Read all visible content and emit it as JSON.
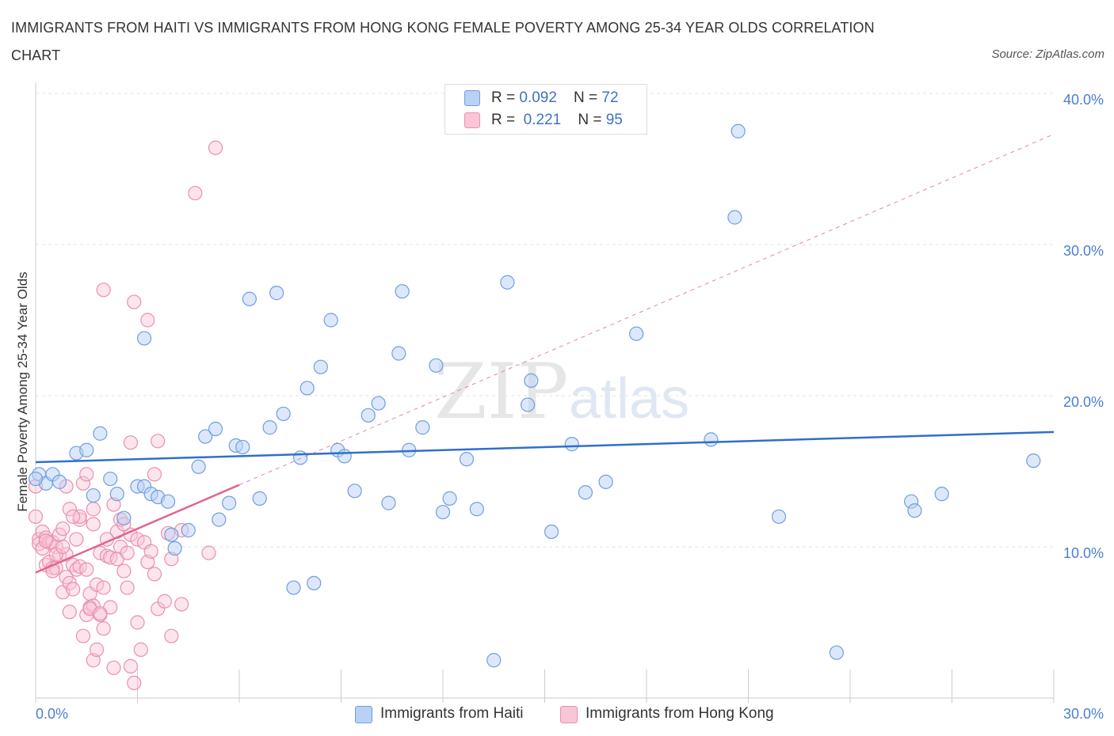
{
  "title": "IMMIGRANTS FROM HAITI VS IMMIGRANTS FROM HONG KONG FEMALE POVERTY AMONG 25-34 YEAR OLDS CORRELATION CHART",
  "source": "Source: ZipAtlas.com",
  "watermark": {
    "zip": "ZIP",
    "atlas": "atlas"
  },
  "legend": {
    "haiti": {
      "r_label": "R = ",
      "r_value": "0.092",
      "n_label": "N = ",
      "n_value": "72"
    },
    "hongkong": {
      "r_label": "R = ",
      "r_value": "0.221",
      "n_label": "N = ",
      "n_value": "95"
    }
  },
  "colors": {
    "haiti": "#6f9ee0",
    "haiti_fill": "#b9d1f3",
    "hongkong": "#ea8fae",
    "hongkong_fill": "#f8c6d7",
    "haiti_line": "#2f6fcb",
    "hongkong_line": "#e06690"
  },
  "chart_data": {
    "type": "scatter",
    "title": "IMMIGRANTS FROM HAITI VS IMMIGRANTS FROM HONG KONG FEMALE POVERTY AMONG 25-34 YEAR OLDS CORRELATION CHART",
    "xlabel": "",
    "ylabel": "Female Poverty Among 25-34 Year Olds",
    "xlim": [
      0,
      30
    ],
    "ylim": [
      0,
      40
    ],
    "x_tick_labels": [
      "0.0%",
      "30.0%"
    ],
    "y_ticks": [
      10,
      20,
      30,
      40
    ],
    "y_tick_labels": [
      "10.0%",
      "20.0%",
      "30.0%",
      "40.0%"
    ],
    "grid": true,
    "legend_position": "top-center",
    "series": [
      {
        "name": "Immigrants from Haiti",
        "r": 0.092,
        "n": 72,
        "trend": {
          "x": [
            0,
            30
          ],
          "y": [
            15.6,
            17.6
          ]
        },
        "points": [
          [
            0.1,
            14.8
          ],
          [
            0.3,
            14.2
          ],
          [
            0.5,
            14.8
          ],
          [
            0.7,
            14.3
          ],
          [
            1.2,
            16.2
          ],
          [
            1.5,
            16.4
          ],
          [
            1.7,
            13.4
          ],
          [
            1.9,
            17.5
          ],
          [
            2.2,
            14.5
          ],
          [
            2.4,
            13.5
          ],
          [
            2.6,
            11.9
          ],
          [
            3.0,
            14.0
          ],
          [
            3.2,
            14.0
          ],
          [
            3.2,
            23.8
          ],
          [
            3.4,
            13.5
          ],
          [
            3.6,
            13.3
          ],
          [
            3.9,
            13.0
          ],
          [
            4.0,
            10.8
          ],
          [
            4.1,
            9.9
          ],
          [
            4.5,
            11.1
          ],
          [
            4.8,
            15.3
          ],
          [
            5.0,
            17.3
          ],
          [
            5.3,
            17.8
          ],
          [
            5.4,
            11.8
          ],
          [
            5.7,
            12.9
          ],
          [
            5.9,
            16.7
          ],
          [
            6.1,
            16.6
          ],
          [
            6.3,
            26.4
          ],
          [
            6.6,
            13.2
          ],
          [
            6.9,
            17.9
          ],
          [
            7.1,
            26.8
          ],
          [
            7.3,
            18.8
          ],
          [
            7.6,
            7.3
          ],
          [
            7.8,
            15.9
          ],
          [
            8.0,
            20.5
          ],
          [
            8.2,
            7.6
          ],
          [
            8.4,
            21.9
          ],
          [
            8.7,
            25.0
          ],
          [
            8.9,
            16.4
          ],
          [
            9.1,
            16.0
          ],
          [
            9.4,
            13.7
          ],
          [
            9.8,
            18.7
          ],
          [
            10.1,
            19.5
          ],
          [
            10.4,
            12.9
          ],
          [
            10.7,
            22.8
          ],
          [
            10.8,
            26.9
          ],
          [
            11.0,
            16.4
          ],
          [
            11.4,
            17.9
          ],
          [
            11.8,
            22.0
          ],
          [
            12.0,
            12.3
          ],
          [
            12.2,
            13.2
          ],
          [
            12.7,
            15.8
          ],
          [
            13.0,
            12.5
          ],
          [
            13.5,
            2.5
          ],
          [
            13.9,
            27.5
          ],
          [
            14.5,
            19.4
          ],
          [
            14.6,
            21.0
          ],
          [
            15.2,
            11.0
          ],
          [
            15.8,
            16.8
          ],
          [
            16.2,
            13.6
          ],
          [
            16.8,
            14.3
          ],
          [
            17.7,
            24.1
          ],
          [
            19.9,
            17.1
          ],
          [
            20.6,
            31.8
          ],
          [
            20.7,
            37.5
          ],
          [
            21.9,
            12.0
          ],
          [
            23.6,
            3.0
          ],
          [
            25.8,
            13.0
          ],
          [
            25.9,
            12.4
          ],
          [
            26.7,
            13.5
          ],
          [
            29.4,
            15.7
          ],
          [
            0.0,
            14.5
          ]
        ]
      },
      {
        "name": "Immigrants from Hong Kong",
        "r": 0.221,
        "n": 95,
        "trend": {
          "x": [
            0,
            6
          ],
          "y": [
            8.3,
            14.1
          ]
        },
        "points": [
          [
            0.0,
            12.0
          ],
          [
            0.0,
            14.0
          ],
          [
            0.1,
            10.5
          ],
          [
            0.1,
            10.2
          ],
          [
            0.2,
            11.0
          ],
          [
            0.2,
            9.9
          ],
          [
            0.3,
            8.8
          ],
          [
            0.3,
            10.6
          ],
          [
            0.4,
            10.3
          ],
          [
            0.4,
            9.0
          ],
          [
            0.5,
            10.3
          ],
          [
            0.5,
            8.6
          ],
          [
            0.6,
            10.0
          ],
          [
            0.6,
            8.6
          ],
          [
            0.7,
            10.8
          ],
          [
            0.7,
            9.4
          ],
          [
            0.8,
            11.2
          ],
          [
            0.8,
            7.0
          ],
          [
            0.9,
            8.0
          ],
          [
            0.9,
            9.5
          ],
          [
            0.9,
            14.0
          ],
          [
            1.0,
            12.5
          ],
          [
            1.0,
            7.6
          ],
          [
            1.0,
            5.7
          ],
          [
            1.1,
            8.8
          ],
          [
            1.1,
            7.2
          ],
          [
            1.2,
            10.5
          ],
          [
            1.2,
            8.5
          ],
          [
            1.3,
            11.8
          ],
          [
            1.3,
            12.0
          ],
          [
            1.3,
            8.7
          ],
          [
            1.4,
            14.2
          ],
          [
            1.4,
            4.1
          ],
          [
            1.5,
            14.8
          ],
          [
            1.5,
            8.5
          ],
          [
            1.5,
            5.5
          ],
          [
            1.6,
            6.9
          ],
          [
            1.6,
            6.0
          ],
          [
            1.7,
            12.5
          ],
          [
            1.7,
            11.5
          ],
          [
            1.7,
            6.1
          ],
          [
            1.7,
            2.5
          ],
          [
            1.8,
            7.5
          ],
          [
            1.8,
            3.2
          ],
          [
            1.9,
            5.5
          ],
          [
            1.9,
            9.6
          ],
          [
            2.0,
            7.3
          ],
          [
            2.0,
            4.6
          ],
          [
            2.0,
            27.0
          ],
          [
            2.1,
            9.4
          ],
          [
            2.2,
            9.3
          ],
          [
            2.2,
            6.0
          ],
          [
            2.3,
            12.8
          ],
          [
            2.3,
            2.0
          ],
          [
            2.4,
            11.0
          ],
          [
            2.4,
            9.2
          ],
          [
            2.5,
            10.0
          ],
          [
            2.5,
            11.8
          ],
          [
            2.6,
            8.4
          ],
          [
            2.7,
            9.6
          ],
          [
            2.7,
            7.3
          ],
          [
            2.8,
            10.8
          ],
          [
            2.8,
            2.1
          ],
          [
            2.8,
            16.9
          ],
          [
            2.9,
            1.0
          ],
          [
            2.9,
            26.2
          ],
          [
            3.0,
            10.5
          ],
          [
            3.0,
            5.0
          ],
          [
            3.1,
            3.2
          ],
          [
            3.2,
            10.3
          ],
          [
            3.3,
            9.0
          ],
          [
            3.3,
            25.0
          ],
          [
            3.4,
            9.7
          ],
          [
            3.5,
            8.2
          ],
          [
            3.5,
            14.8
          ],
          [
            3.6,
            17.0
          ],
          [
            3.6,
            5.9
          ],
          [
            3.8,
            6.4
          ],
          [
            3.9,
            10.9
          ],
          [
            4.0,
            9.2
          ],
          [
            4.0,
            4.1
          ],
          [
            4.3,
            6.2
          ],
          [
            4.3,
            11.1
          ],
          [
            4.7,
            33.4
          ],
          [
            5.1,
            9.6
          ],
          [
            5.3,
            36.4
          ],
          [
            0.5,
            8.4
          ],
          [
            0.6,
            9.5
          ],
          [
            1.1,
            12.0
          ],
          [
            1.6,
            5.9
          ],
          [
            2.1,
            10.5
          ],
          [
            0.3,
            10.4
          ],
          [
            0.8,
            10.0
          ],
          [
            1.9,
            5.6
          ],
          [
            2.6,
            11.5
          ]
        ]
      }
    ]
  },
  "bottom_legend": {
    "haiti": "Immigrants from Haiti",
    "hongkong": "Immigrants from Hong Kong"
  }
}
